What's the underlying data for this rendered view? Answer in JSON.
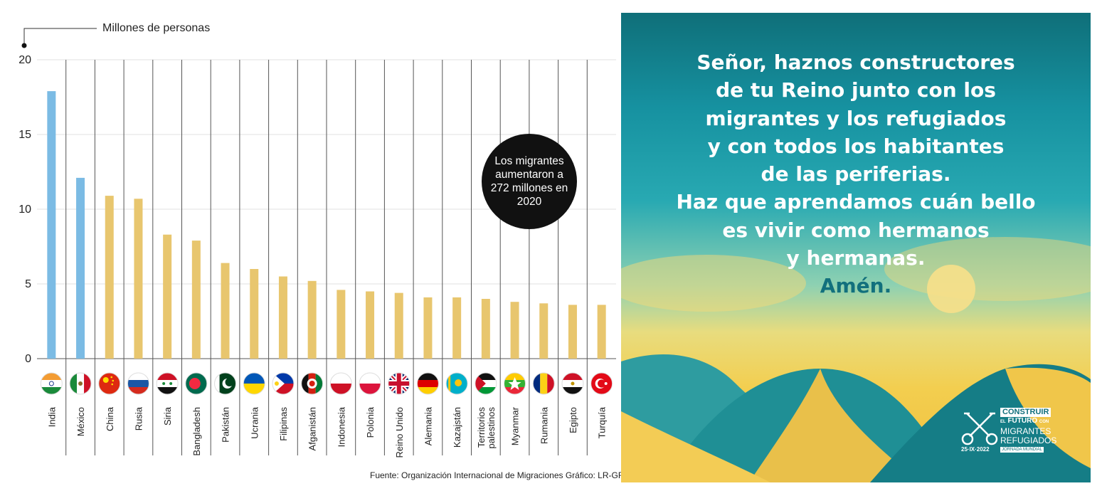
{
  "chart_data": {
    "type": "bar",
    "ylabel": "Millones de personas",
    "ylim": [
      0,
      20
    ],
    "yticks": [
      0,
      5,
      10,
      15,
      20
    ],
    "grid": true,
    "categories": [
      "India",
      "México",
      "China",
      "Rusia",
      "Siria",
      "Bangladesh",
      "Pakistán",
      "Ucrania",
      "Filipinas",
      "Afganistán",
      "Indonesia",
      "Polonia",
      "Reino Unido",
      "Alemania",
      "Kazajstán",
      "Territorios palestinos",
      "Myanmar",
      "Rumania",
      "Egipto",
      "Turquía"
    ],
    "values": [
      17.9,
      12.1,
      10.9,
      10.7,
      8.3,
      7.9,
      6.4,
      6.0,
      5.5,
      5.2,
      4.6,
      4.5,
      4.4,
      4.1,
      4.1,
      4.0,
      3.8,
      3.7,
      3.6,
      3.6
    ],
    "bar_colors": [
      "#7bbbe4",
      "#7bbbe4",
      "#e8c66e",
      "#e8c66e",
      "#e8c66e",
      "#e8c66e",
      "#e8c66e",
      "#e8c66e",
      "#e8c66e",
      "#e8c66e",
      "#e8c66e",
      "#e8c66e",
      "#e8c66e",
      "#e8c66e",
      "#e8c66e",
      "#e8c66e",
      "#e8c66e",
      "#e8c66e",
      "#e8c66e",
      "#e8c66e"
    ],
    "flag_icons": [
      "flag-india-icon",
      "flag-mexico-icon",
      "flag-china-icon",
      "flag-russia-icon",
      "flag-syria-icon",
      "flag-bangladesh-icon",
      "flag-pakistan-icon",
      "flag-ukraine-icon",
      "flag-philippines-icon",
      "flag-afghanistan-icon",
      "flag-indonesia-icon",
      "flag-poland-icon",
      "flag-uk-icon",
      "flag-germany-icon",
      "flag-kazakhstan-icon",
      "flag-palestine-icon",
      "flag-myanmar-icon",
      "flag-romania-icon",
      "flag-egypt-icon",
      "flag-turkey-icon"
    ],
    "annotation": "Los migrantes aumentaron a 272 millones en 2020"
  },
  "source": "Fuente: Organización Internacional de Migraciones    Gráfico: LR-GR",
  "poster": {
    "lines": [
      "Señor, haznos constructores",
      "de tu Reino junto con los",
      "migrantes y los refugiados",
      "y con todos los habitantes",
      "de las periferias.",
      "Haz que aprendamos cuán bello",
      "es vivir como hermanos",
      "y hermanas."
    ],
    "amen": "Amén.",
    "logo": {
      "line1": "CONSTRUIR",
      "line2_small": "EL",
      "line2": "FUTURO",
      "line2_suffix": "CON",
      "line3": "MIGRANTES",
      "line4": "REFUGIADOS",
      "date": "25·IX·2022",
      "event": "JORNADA MUNDIAL"
    },
    "colors": {
      "text": "#ffffff",
      "amen": "#12707d"
    }
  }
}
